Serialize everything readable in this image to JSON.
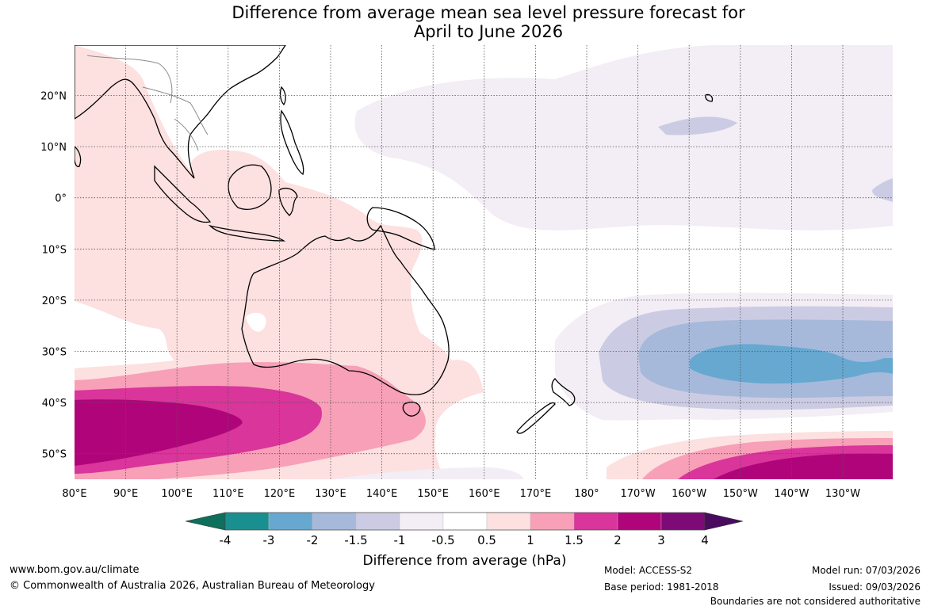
{
  "title": {
    "line1": "Difference from average mean sea level pressure forecast for",
    "line2": "April to June 2026"
  },
  "map": {
    "lon_labels": [
      "80°E",
      "90°E",
      "100°E",
      "110°E",
      "120°E",
      "130°E",
      "140°E",
      "150°E",
      "160°E",
      "170°E",
      "180°",
      "170°W",
      "160°W",
      "150°W",
      "140°W",
      "130°W"
    ],
    "lat_labels": [
      "20°N",
      "10°N",
      "0°",
      "10°S",
      "20°S",
      "30°S",
      "40°S",
      "50°S"
    ],
    "gridlines": true
  },
  "colorbar": {
    "title": "Difference from average (hPa)",
    "tick_labels": [
      "-4",
      "-3",
      "-2",
      "-1.5",
      "-1",
      "-0.5",
      "0.5",
      "1",
      "1.5",
      "2",
      "3",
      "4"
    ],
    "colors": [
      "#0e6f5c",
      "#1a8f8f",
      "#66a8d0",
      "#a6b9db",
      "#cbcce3",
      "#f3edf5",
      "#ffffff",
      "#fde0e0",
      "#f7a0b8",
      "#d9359a",
      "#b0057a",
      "#7e0a77",
      "#4a0c5e"
    ]
  },
  "footer": {
    "website": "www.bom.gov.au/climate",
    "copyright": "© Commonwealth of Australia 2026, Australian Bureau of Meteorology",
    "model": "Model: ACCESS-S2",
    "base_period": "Base period: 1981-2018",
    "model_run": "Model run: 07/03/2026",
    "issued": "Issued: 09/03/2026",
    "disclaimer": "Boundaries are not considered authoritative"
  }
}
